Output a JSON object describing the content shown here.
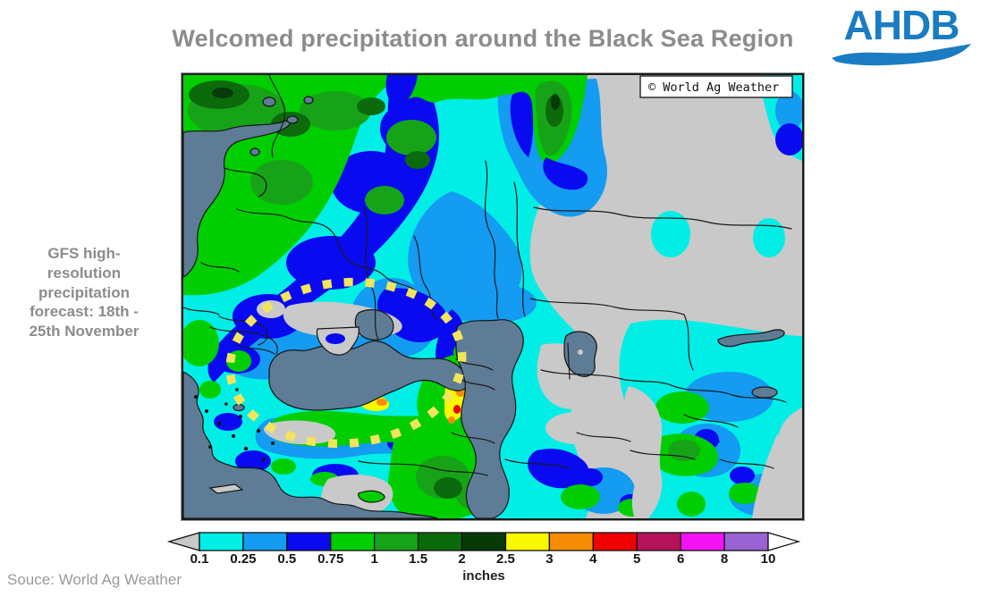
{
  "title": "Welcomed precipitation around the Black Sea Region",
  "logo": {
    "text": "AHDB",
    "color": "#1B7CC2"
  },
  "annotation": {
    "text": "GFS high-resolution precipitation forecast: 18th - 25th November",
    "lines": "GFS high-\nresolution\nprecipitation\nforecast: 18th -\n25th November"
  },
  "map": {
    "credit": "© World Ag Weather",
    "land_color": "#C9C9C9",
    "sea_color": "#5E7C95",
    "border_color": "#1A1A1A",
    "highlight_ellipse_color": "#F2E55C"
  },
  "legend": {
    "units": "inches",
    "tick_labels": [
      "0.1",
      "0.25",
      "0.5",
      "0.75",
      "1",
      "1.5",
      "2",
      "2.5",
      "3",
      "4",
      "5",
      "6",
      "8",
      "10"
    ],
    "colors": [
      "#00EEE6",
      "#149BF2",
      "#0A0AF0",
      "#00CE00",
      "#17A317",
      "#0B6B0B",
      "#073A07",
      "#F7F700",
      "#F78C05",
      "#F00000",
      "#B5125A",
      "#F312F3",
      "#9A63D3"
    ],
    "left_arrow_color": "#C8C8C8",
    "right_arrow_color": "#FFFFFF"
  },
  "source": "Souce: World Ag Weather"
}
